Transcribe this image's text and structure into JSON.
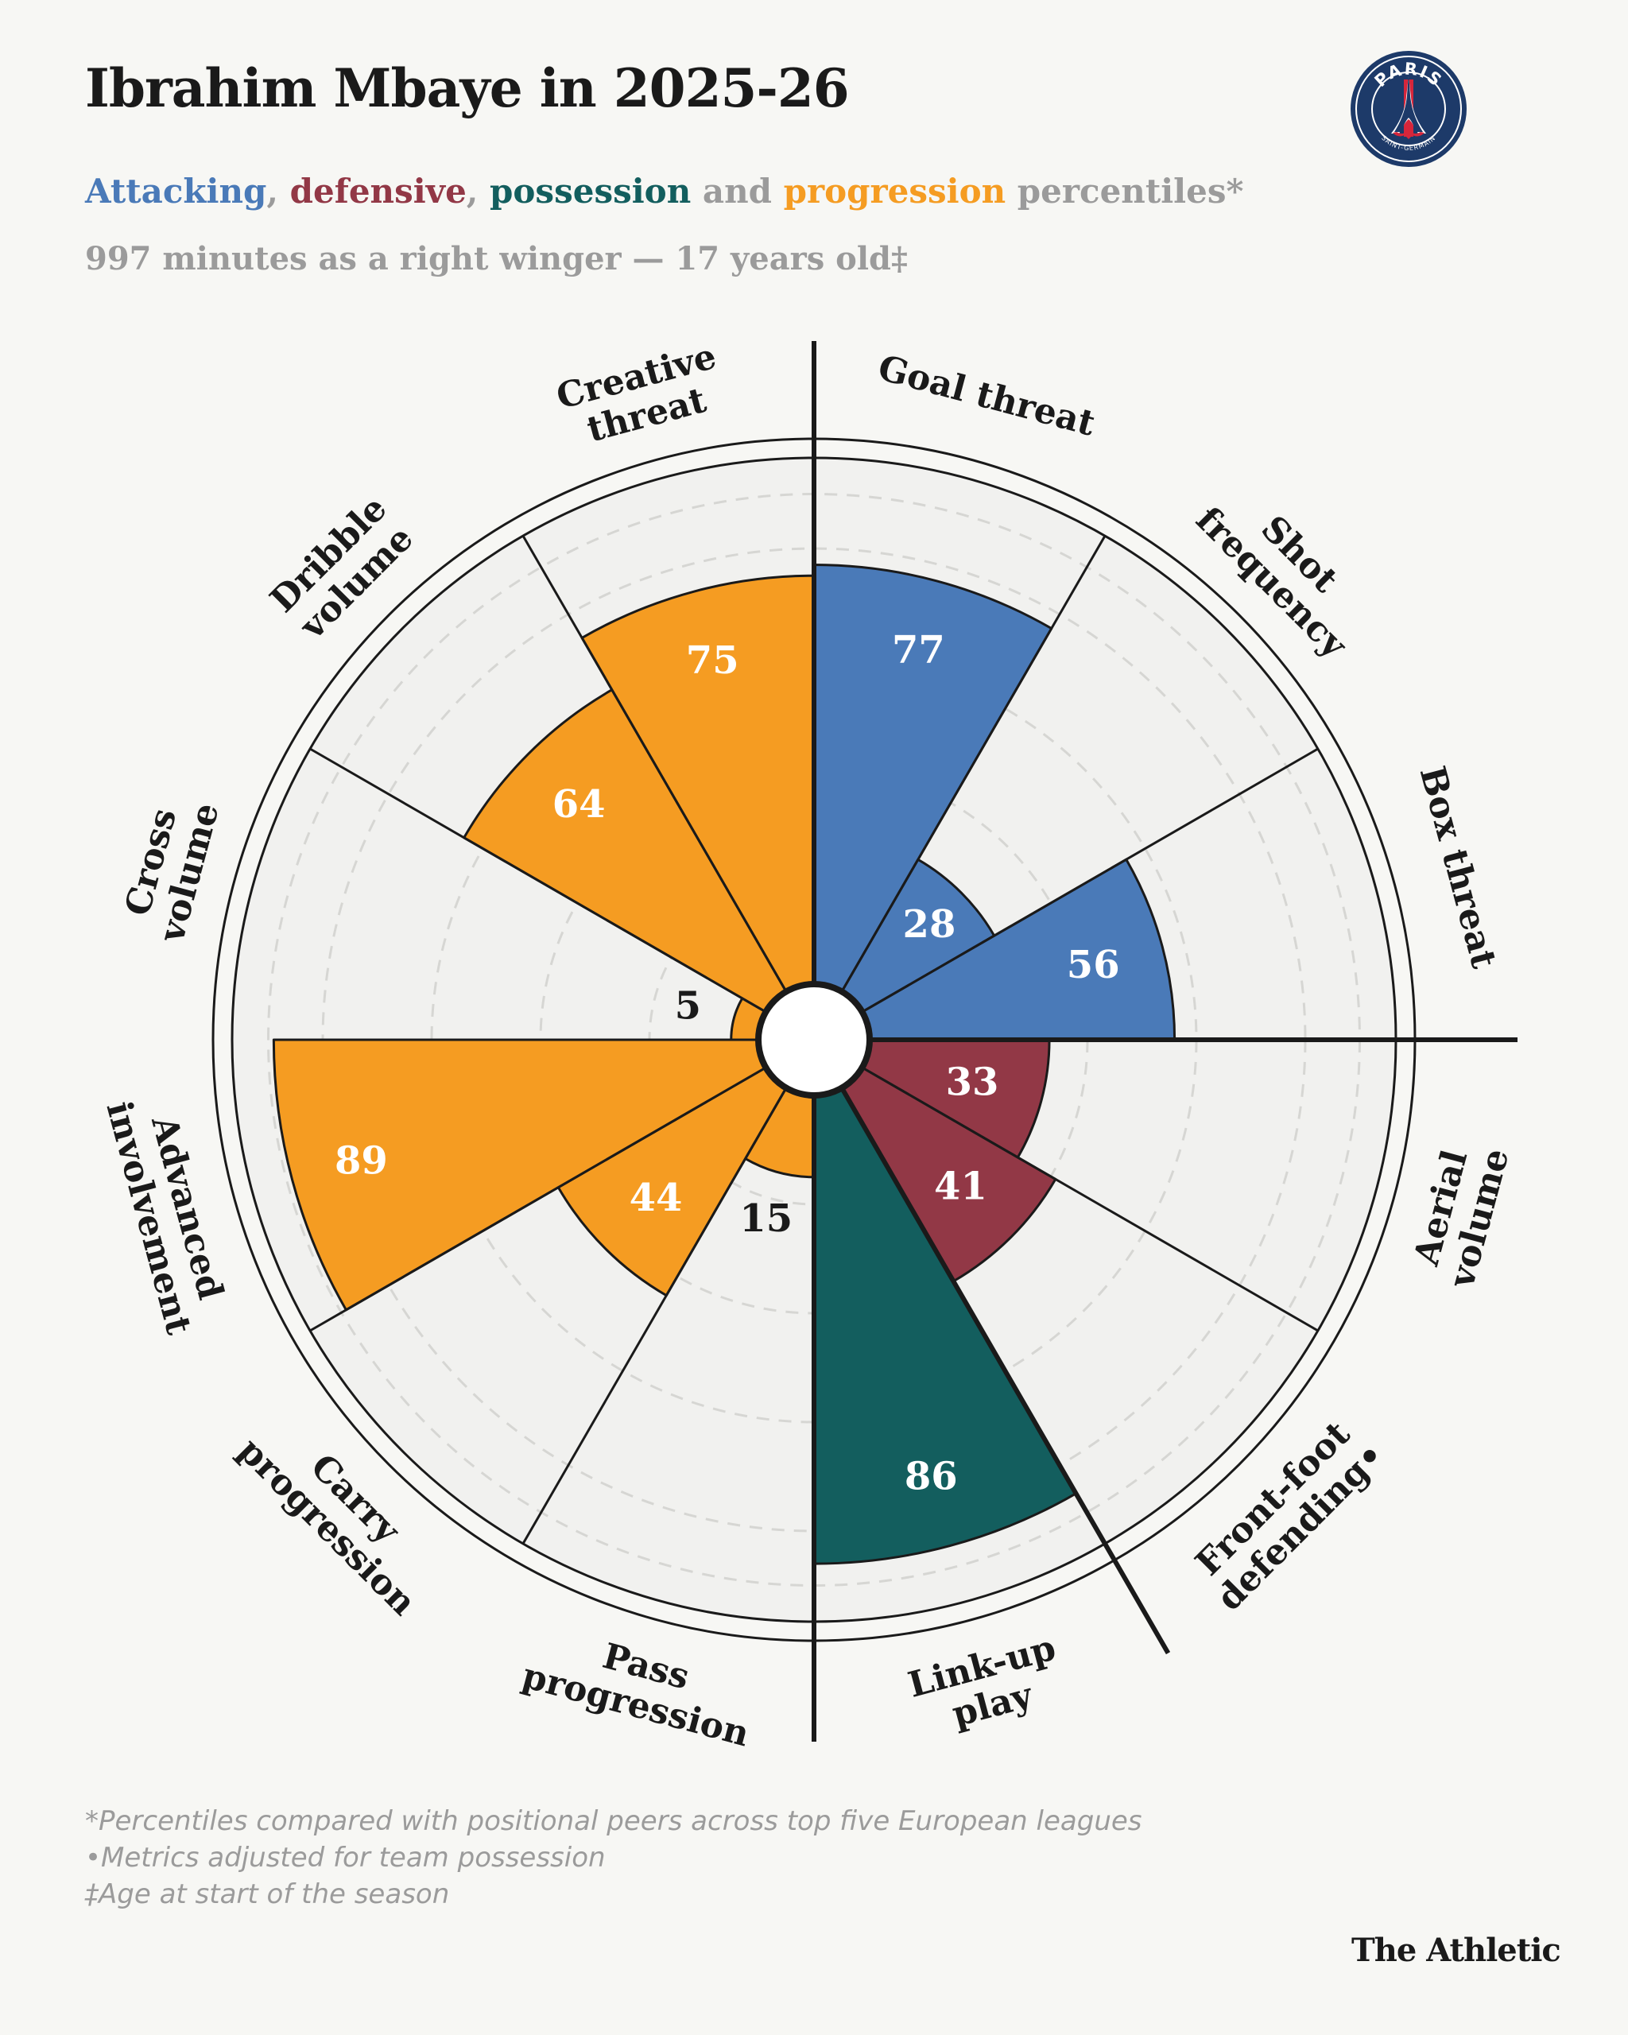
{
  "header": {
    "title": "Ibrahim Mbaye in 2025-26",
    "subtitle": {
      "w1": "Attacking",
      "s1": ", ",
      "w2": "defensive",
      "s2": ", ",
      "w3": "possession",
      "s3": " and ",
      "w4": "progression",
      "s4": " percentiles*"
    },
    "subline": "997 minutes as a right winger — 17 years old‡"
  },
  "logo": {
    "top_text": "PARIS",
    "bottom_text": "SAINT-GERMAIN"
  },
  "colors": {
    "attacking": "#4a7ab8",
    "defensive": "#923846",
    "possession": "#135e5e",
    "progression": "#f59c22",
    "muted": "#9b9b9b"
  },
  "chart_data": {
    "type": "pie",
    "range": [
      0,
      100
    ],
    "series": [
      {
        "name": "Attacking",
        "color": "#4a7ab8"
      },
      {
        "name": "Defensive",
        "color": "#923846"
      },
      {
        "name": "Possession",
        "color": "#135e5e"
      },
      {
        "name": "Progression",
        "color": "#f59c22"
      }
    ],
    "metrics": [
      {
        "label": [
          "Goal threat"
        ],
        "value": 77,
        "group": "Attacking"
      },
      {
        "label": [
          "Shot",
          "frequency"
        ],
        "value": 28,
        "group": "Attacking"
      },
      {
        "label": [
          "Box threat"
        ],
        "value": 56,
        "group": "Attacking"
      },
      {
        "label": [
          "Aerial",
          "volume"
        ],
        "value": 33,
        "group": "Defensive"
      },
      {
        "label": [
          "Front-foot",
          "defending•"
        ],
        "value": 41,
        "group": "Defensive"
      },
      {
        "label": [
          "Link-up",
          "play"
        ],
        "value": 86,
        "group": "Possession"
      },
      {
        "label": [
          "Pass",
          "progression"
        ],
        "value": 15,
        "group": "Progression"
      },
      {
        "label": [
          "Carry",
          "progression"
        ],
        "value": 44,
        "group": "Progression"
      },
      {
        "label": [
          "Advanced",
          "involvement"
        ],
        "value": 89,
        "group": "Progression"
      },
      {
        "label": [
          "Cross",
          "volume"
        ],
        "value": 5,
        "group": "Progression"
      },
      {
        "label": [
          "Dribble",
          "volume"
        ],
        "value": 64,
        "group": "Progression"
      },
      {
        "label": [
          "Creative",
          "threat"
        ],
        "value": 75,
        "group": "Progression"
      }
    ]
  },
  "footnotes": [
    "*Percentiles compared with positional peers across top five European leagues",
    "•Metrics adjusted for team possession",
    "‡Age at start of the season"
  ],
  "brand": "The Athletic"
}
